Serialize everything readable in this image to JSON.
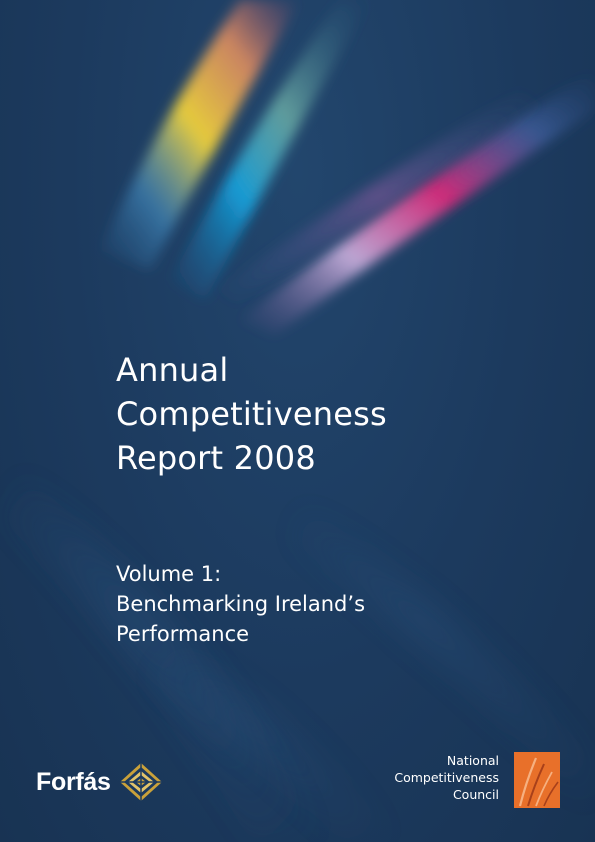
{
  "report": {
    "title_lines": [
      "Annual",
      "Competitiveness",
      "Report 2008"
    ],
    "subtitle_lines": [
      "Volume 1:",
      "Benchmarking Ireland’s",
      "Performance"
    ]
  },
  "publishers": {
    "forfas": {
      "name": "Forfás",
      "icon": "diamond-logo-icon"
    },
    "council": {
      "name_lines": [
        "National",
        "Competitiveness",
        "Council"
      ],
      "icon": "ncc-logo-icon"
    }
  },
  "colors": {
    "background": "#1c3a5e",
    "text": "#ffffff",
    "forfas_gold": "#c9a13a",
    "ncc_orange": "#e8702a"
  }
}
